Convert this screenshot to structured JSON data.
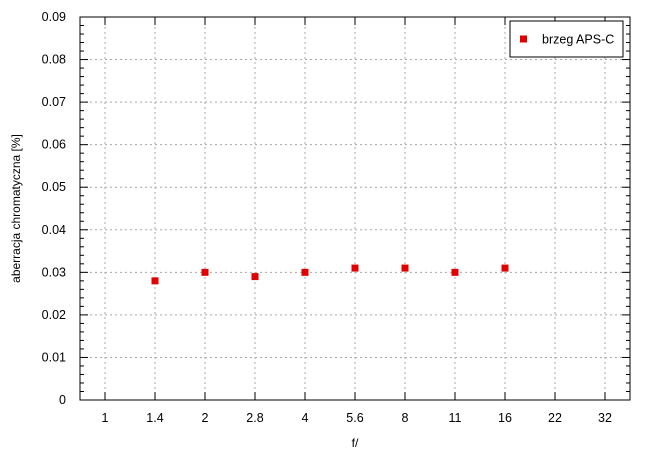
{
  "chart_data": {
    "type": "scatter",
    "title": "",
    "xlabel": "f/",
    "ylabel": "aberracja chromatyczna [%]",
    "categories": [
      "1",
      "1.4",
      "2",
      "2.8",
      "4",
      "5.6",
      "8",
      "11",
      "16",
      "22",
      "32"
    ],
    "ylim": [
      0,
      0.09
    ],
    "y_ticks": [
      "0",
      "0.01",
      "0.02",
      "0.03",
      "0.04",
      "0.05",
      "0.06",
      "0.07",
      "0.08",
      "0.09"
    ],
    "grid": true,
    "legend_position": "top-right",
    "series": [
      {
        "name": "brzeg APS-C",
        "color": "#e00000",
        "marker": "square",
        "points": [
          {
            "x": "1.4",
            "y": 0.028
          },
          {
            "x": "2",
            "y": 0.03
          },
          {
            "x": "2.8",
            "y": 0.029
          },
          {
            "x": "4",
            "y": 0.03
          },
          {
            "x": "5.6",
            "y": 0.031
          },
          {
            "x": "8",
            "y": 0.031
          },
          {
            "x": "11",
            "y": 0.03
          },
          {
            "x": "16",
            "y": 0.031
          }
        ]
      }
    ]
  }
}
